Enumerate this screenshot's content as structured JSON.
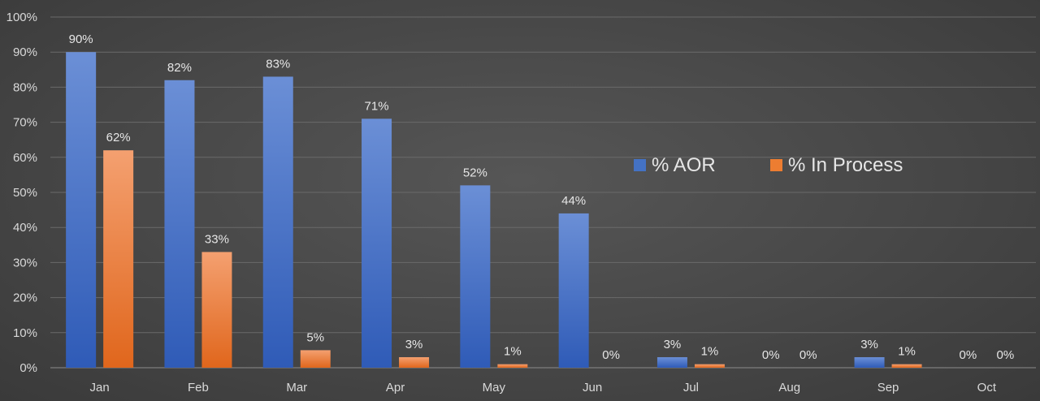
{
  "chart_data": {
    "type": "bar",
    "categories": [
      "Jan",
      "Feb",
      "Mar",
      "Apr",
      "May",
      "Jun",
      "Jul",
      "Aug",
      "Sep",
      "Oct"
    ],
    "series": [
      {
        "name": "% AOR",
        "color": "#4472c4",
        "values": [
          90,
          82,
          83,
          71,
          52,
          44,
          3,
          0,
          3,
          0
        ],
        "labels": [
          "90%",
          "82%",
          "83%",
          "71%",
          "52%",
          "44%",
          "3%",
          "0%",
          "3%",
          "0%"
        ]
      },
      {
        "name": "% In Process",
        "color": "#ed7d31",
        "values": [
          62,
          33,
          5,
          3,
          1,
          0,
          1,
          0,
          1,
          0
        ],
        "labels": [
          "62%",
          "33%",
          "5%",
          "3%",
          "1%",
          "0%",
          "1%",
          "0%",
          "1%",
          "0%"
        ]
      }
    ],
    "ylim": [
      0,
      100
    ],
    "yticks": [
      "0%",
      "10%",
      "20%",
      "30%",
      "40%",
      "50%",
      "60%",
      "70%",
      "80%",
      "90%",
      "100%"
    ],
    "grid": true,
    "legend_position": "center-right"
  }
}
